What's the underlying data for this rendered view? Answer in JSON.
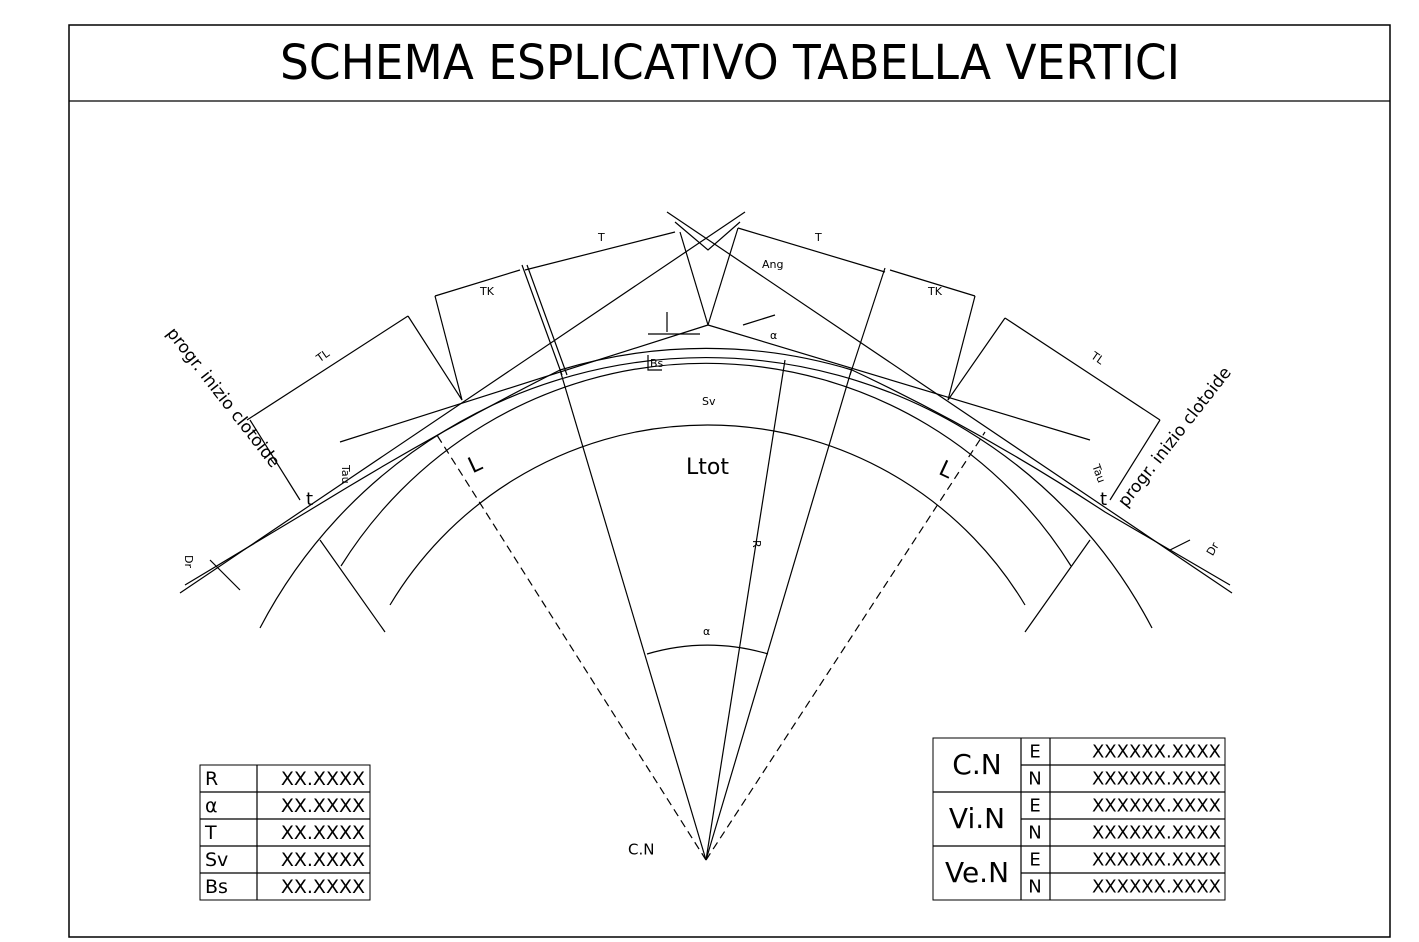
{
  "header": {
    "title": "SCHEMA ESPLICATIVO TABELLA VERTICI"
  },
  "labels": {
    "t_left": "T",
    "t_right": "T",
    "ang": "Ang",
    "tk_left": "TK",
    "tk_right": "TK",
    "tl_left": "TL",
    "tl_right": "TL",
    "progr_left": "progr. inizio clotoide",
    "progr_right": "progr. inizio clotoide",
    "bs": "Bs",
    "alpha_top": "α",
    "alpha_center": "α",
    "sv": "Sv",
    "ltot": "Ltot",
    "l_left": "L",
    "l_right": "L",
    "tau_left": "Tau",
    "tau_right": "Tau",
    "dr_left": "Dr",
    "dr_right": "Dr",
    "r": "R",
    "cn": "C.N",
    "tt_left": "t",
    "tt_right": "t"
  },
  "left_table": {
    "rows": [
      [
        "R",
        "XX.XXXX"
      ],
      [
        "α",
        "XX.XXXX"
      ],
      [
        "T",
        "XX.XXXX"
      ],
      [
        "Sv",
        "XX.XXXX"
      ],
      [
        "Bs",
        "XX.XXXX"
      ]
    ]
  },
  "right_table": {
    "rows": [
      {
        "point": "C.N",
        "coords": [
          [
            "E",
            "XXXXXX.XXXX"
          ],
          [
            "N",
            "XXXXXX.XXXX"
          ]
        ]
      },
      {
        "point": "Vi.N",
        "coords": [
          [
            "E",
            "XXXXXX.XXXX"
          ],
          [
            "N",
            "XXXXXX.XXXX"
          ]
        ]
      },
      {
        "point": "Ve.N",
        "coords": [
          [
            "E",
            "XXXXXX.XXXX"
          ],
          [
            "N",
            "XXXXXX.XXXX"
          ]
        ]
      }
    ]
  }
}
